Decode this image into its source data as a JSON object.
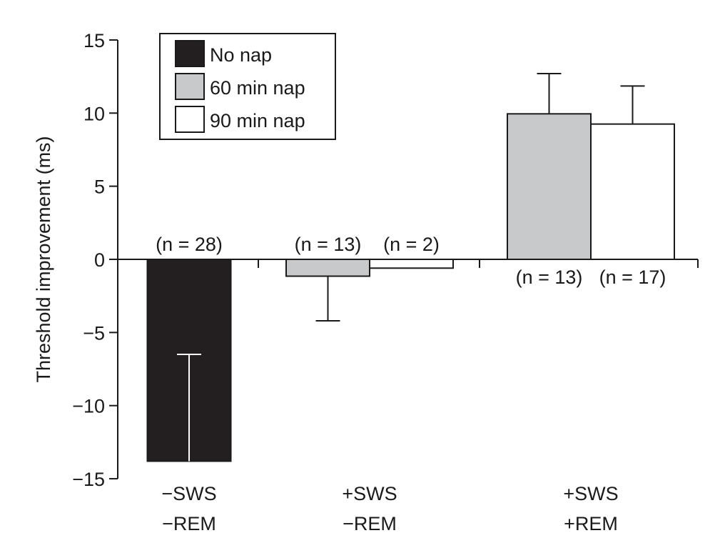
{
  "chart_data": {
    "type": "bar",
    "title": "",
    "xlabel": "",
    "ylabel": "Threshold improvement (ms)",
    "ylim": [
      -15,
      15
    ],
    "yticks": [
      15,
      10,
      5,
      0,
      -5,
      -10,
      -15
    ],
    "ytick_labels": [
      "15",
      "10",
      "5",
      "0",
      "−5",
      "−10",
      "−15"
    ],
    "categories": [
      {
        "line1": "−SWS",
        "line2": "−REM"
      },
      {
        "line1": "+SWS",
        "line2": "−REM"
      },
      {
        "line1": "+SWS",
        "line2": "+REM"
      }
    ],
    "legend": {
      "placement": "top-left",
      "entries": [
        "No nap",
        "60 min nap",
        "90 min nap"
      ]
    },
    "series_colors": {
      "No nap": "#231f20",
      "60 min nap": "#c8c9cb",
      "90 min nap": "#ffffff"
    },
    "bars": [
      {
        "category": 0,
        "series": "No nap",
        "value": -13.8,
        "error": 7.3,
        "n_label": "(n = 28)",
        "label_pos": "above"
      },
      {
        "category": 1,
        "series": "60 min nap",
        "value": -1.15,
        "error": 3.05,
        "n_label": "(n = 13)",
        "label_pos": "above"
      },
      {
        "category": 1,
        "series": "90 min nap",
        "value": -0.6,
        "error": 0,
        "n_label": "(n = 2)",
        "label_pos": "above"
      },
      {
        "category": 2,
        "series": "60 min nap",
        "value": 9.95,
        "error": 2.75,
        "n_label": "(n = 13)",
        "label_pos": "below"
      },
      {
        "category": 2,
        "series": "90 min nap",
        "value": 9.25,
        "error": 2.6,
        "n_label": "(n = 17)",
        "label_pos": "below"
      }
    ]
  }
}
